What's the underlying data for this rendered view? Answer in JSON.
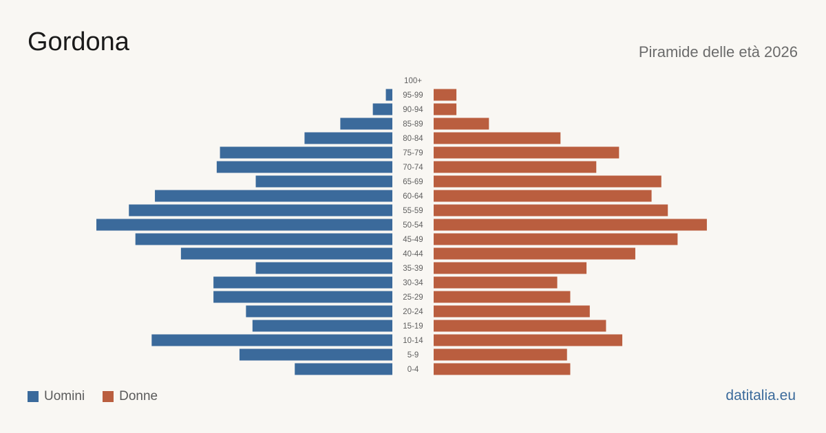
{
  "title": "Gordona",
  "subtitle": "Piramide delle età 2026",
  "brand": "datitalia.eu",
  "legend": {
    "male": "Uomini",
    "female": "Donne"
  },
  "colors": {
    "male": "#3b6a9b",
    "female": "#ba5e3f"
  },
  "chart_data": {
    "type": "bar",
    "orientation": "horizontal-pyramid",
    "categories": [
      "100+",
      "95-99",
      "90-94",
      "85-89",
      "80-84",
      "75-79",
      "70-74",
      "65-69",
      "60-64",
      "55-59",
      "50-54",
      "45-49",
      "40-44",
      "35-39",
      "30-34",
      "25-29",
      "20-24",
      "15-19",
      "10-14",
      "5-9",
      "0-4"
    ],
    "series": [
      {
        "name": "Uomini",
        "values": [
          0,
          2,
          6,
          16,
          27,
          53,
          54,
          42,
          73,
          81,
          91,
          79,
          65,
          42,
          55,
          55,
          45,
          43,
          74,
          47,
          30
        ]
      },
      {
        "name": "Donne",
        "values": [
          0,
          7,
          7,
          17,
          39,
          57,
          50,
          70,
          67,
          72,
          84,
          75,
          62,
          47,
          38,
          42,
          48,
          53,
          58,
          41,
          42
        ]
      }
    ]
  }
}
